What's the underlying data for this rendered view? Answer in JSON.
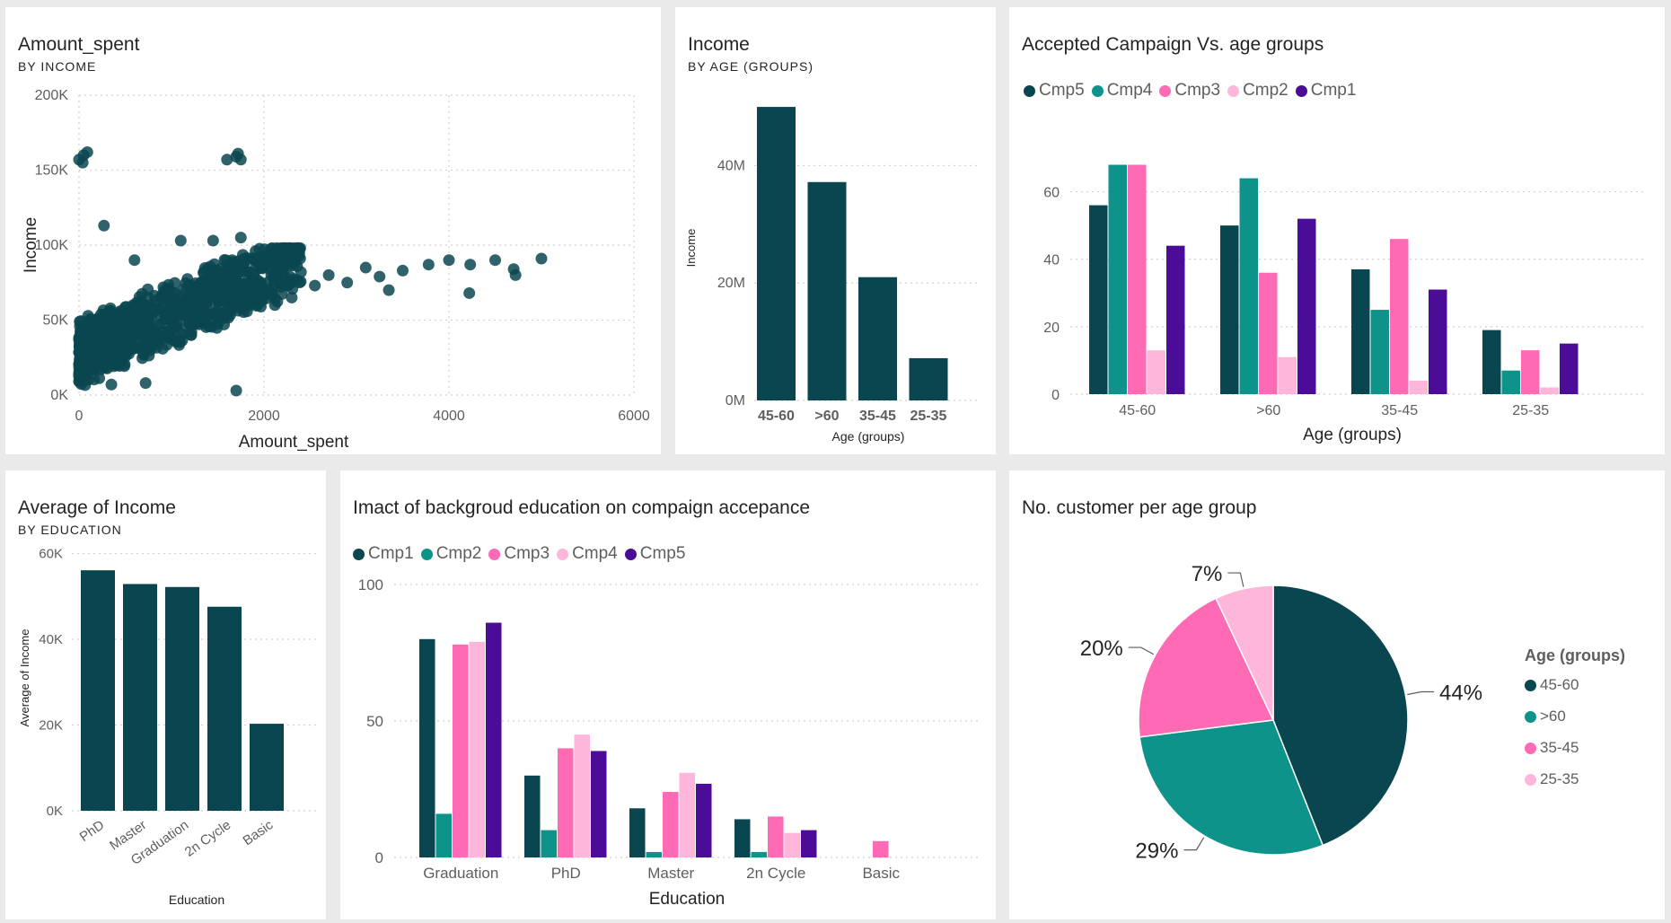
{
  "colors": {
    "dark": "#0a4650",
    "teal": "#0e938b",
    "pink": "#ff6ab4",
    "lightpink": "#ffb6da",
    "purple": "#4b0c97"
  },
  "cards": {
    "scatter": {
      "title": "Amount_spent",
      "subtitle": "BY INCOME"
    },
    "income_age": {
      "title": "Income",
      "subtitle": "BY AGE (GROUPS)"
    },
    "campaign_age": {
      "title": "Accepted Campaign Vs. age groups"
    },
    "income_edu": {
      "title": "Average of Income",
      "subtitle": "BY EDUCATION"
    },
    "campaign_edu": {
      "title": "Imact of backgroud education on compaign accepance"
    },
    "pie": {
      "title": "No. customer per age group"
    }
  },
  "chart_data": [
    {
      "id": "scatter",
      "type": "scatter",
      "xlabel": "Amount_spent",
      "ylabel": "Income",
      "xlim": [
        0,
        6000
      ],
      "ylim": [
        0,
        200000
      ],
      "xticks": [
        "0",
        "2000",
        "4000",
        "6000"
      ],
      "yticks": [
        "0K",
        "50K",
        "100K",
        "150K",
        "200K"
      ],
      "grid": true,
      "outliers": [
        {
          "x": 0,
          "y": 157000
        },
        {
          "x": 40,
          "y": 155000
        },
        {
          "x": 50,
          "y": 160000
        },
        {
          "x": 90,
          "y": 162000
        },
        {
          "x": 1600,
          "y": 157000
        },
        {
          "x": 1700,
          "y": 159000
        },
        {
          "x": 1720,
          "y": 161000
        },
        {
          "x": 1750,
          "y": 157000
        },
        {
          "x": 270,
          "y": 113000
        },
        {
          "x": 1700,
          "y": 3000
        },
        {
          "x": 720,
          "y": 8000
        },
        {
          "x": 350,
          "y": 7000
        },
        {
          "x": 3780,
          "y": 87000
        },
        {
          "x": 4000,
          "y": 90000
        },
        {
          "x": 4220,
          "y": 68000
        },
        {
          "x": 4230,
          "y": 87000
        },
        {
          "x": 4500,
          "y": 90000
        },
        {
          "x": 4700,
          "y": 84000
        },
        {
          "x": 4720,
          "y": 80000
        },
        {
          "x": 5000,
          "y": 91000
        },
        {
          "x": 3500,
          "y": 83000
        },
        {
          "x": 3350,
          "y": 70000
        },
        {
          "x": 3100,
          "y": 85000
        },
        {
          "x": 2900,
          "y": 75000
        },
        {
          "x": 3250,
          "y": 79000
        },
        {
          "x": 2700,
          "y": 80000
        },
        {
          "x": 2550,
          "y": 73000
        },
        {
          "x": 2400,
          "y": 82000
        },
        {
          "x": 2300,
          "y": 65000
        },
        {
          "x": 2200,
          "y": 90000
        },
        {
          "x": 1750,
          "y": 105000
        },
        {
          "x": 1450,
          "y": 103000
        },
        {
          "x": 1100,
          "y": 103000
        },
        {
          "x": 600,
          "y": 90000
        },
        {
          "x": 1350,
          "y": 56000
        },
        {
          "x": 1800,
          "y": 60000
        }
      ],
      "cluster_note": "dense cloud of customers, income rising with spend"
    },
    {
      "id": "income_age",
      "type": "bar",
      "xlabel": "Age (groups)",
      "ylabel": "Income",
      "categories": [
        "45-60",
        ">60",
        "35-45",
        "25-35"
      ],
      "values": [
        50000000,
        37200000,
        21000000,
        7200000
      ],
      "ylim": [
        0,
        52000000
      ],
      "yticks": [
        "0M",
        "20M",
        "40M"
      ]
    },
    {
      "id": "campaign_age",
      "type": "bar",
      "xlabel": "Age (groups)",
      "ylabel": "",
      "categories": [
        "45-60",
        ">60",
        "35-45",
        "25-35"
      ],
      "ylim": [
        0,
        70
      ],
      "yticks": [
        "0",
        "20",
        "40",
        "60"
      ],
      "series": [
        {
          "name": "Cmp5",
          "color": "dark",
          "values": [
            56,
            50,
            37,
            19
          ]
        },
        {
          "name": "Cmp4",
          "color": "teal",
          "values": [
            68,
            64,
            25,
            7
          ]
        },
        {
          "name": "Cmp3",
          "color": "pink",
          "values": [
            68,
            36,
            46,
            13
          ]
        },
        {
          "name": "Cmp2",
          "color": "lightpink",
          "values": [
            13,
            11,
            4,
            2
          ]
        },
        {
          "name": "Cmp1",
          "color": "purple",
          "values": [
            44,
            52,
            31,
            15
          ]
        }
      ],
      "legend_position": "top-left"
    },
    {
      "id": "income_edu",
      "type": "bar",
      "xlabel": "Education",
      "ylabel": "Average of Income",
      "categories": [
        "PhD",
        "Master",
        "Graduation",
        "2n Cycle",
        "Basic"
      ],
      "values": [
        56100,
        52900,
        52200,
        47600,
        20300
      ],
      "ylim": [
        0,
        62000
      ],
      "yticks": [
        "0K",
        "20K",
        "40K",
        "60K"
      ]
    },
    {
      "id": "campaign_edu",
      "type": "bar",
      "xlabel": "Education",
      "ylabel": "",
      "categories": [
        "Graduation",
        "PhD",
        "Master",
        "2n Cycle",
        "Basic"
      ],
      "ylim": [
        0,
        100
      ],
      "yticks": [
        "0",
        "50",
        "100"
      ],
      "series": [
        {
          "name": "Cmp1",
          "color": "dark",
          "values": [
            80,
            30,
            18,
            14,
            0
          ]
        },
        {
          "name": "Cmp2",
          "color": "teal",
          "values": [
            16,
            10,
            2,
            2,
            0
          ]
        },
        {
          "name": "Cmp3",
          "color": "pink",
          "values": [
            78,
            40,
            24,
            15,
            6
          ]
        },
        {
          "name": "Cmp4",
          "color": "lightpink",
          "values": [
            79,
            45,
            31,
            9,
            0
          ]
        },
        {
          "name": "Cmp5",
          "color": "purple",
          "values": [
            86,
            39,
            27,
            10,
            0
          ]
        }
      ],
      "legend_position": "top-left"
    },
    {
      "id": "pie",
      "type": "pie",
      "legend_title": "Age (groups)",
      "slices": [
        {
          "label": "45-60",
          "value": 44,
          "pct_label": "44%",
          "color": "dark"
        },
        {
          "label": ">60",
          "value": 29,
          "pct_label": "29%",
          "color": "teal"
        },
        {
          "label": "35-45",
          "value": 20,
          "pct_label": "20%",
          "color": "pink"
        },
        {
          "label": "25-35",
          "value": 7,
          "pct_label": "7%",
          "color": "lightpink"
        }
      ],
      "legend_position": "right"
    }
  ]
}
